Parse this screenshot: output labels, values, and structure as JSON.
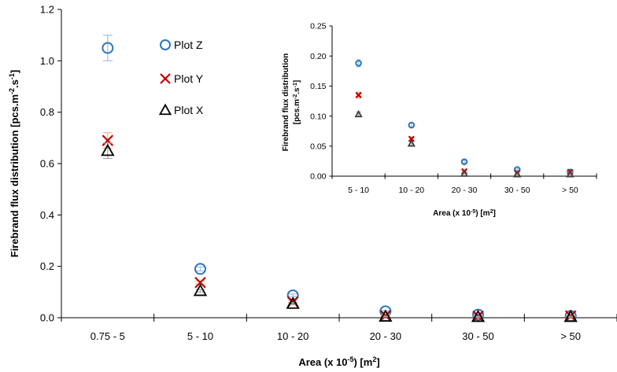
{
  "chart_data": [
    {
      "type": "scatter",
      "title": "",
      "xlabel": "Area (x 10",
      "xlabel_sup": "-5",
      "xlabel_tail": ") [m",
      "xlabel_sup2": "2",
      "xlabel_end": "]",
      "ylabel": "Firebrand flux distribution [pcs.m",
      "ylabel_sup": "-2",
      "ylabel_mid": ".s",
      "ylabel_sup2": "-1",
      "ylabel_end": "]",
      "categories": [
        "0.75 - 5",
        "5 - 10",
        "10 - 20",
        "20 - 30",
        "30 - 50",
        "> 50"
      ],
      "ylim": [
        0,
        1.2
      ],
      "yticks": [
        "0.0",
        "0.2",
        "0.4",
        "0.6",
        "0.8",
        "1.0",
        "1.2"
      ],
      "yticks_values": [
        0,
        0.2,
        0.4,
        0.6,
        0.8,
        1.0,
        1.2
      ],
      "grid": false,
      "legend_position": "top-center",
      "series": [
        {
          "name": "Plot Z",
          "marker": "circle",
          "color": "#2e75b6",
          "error_color": "#9dc3e6",
          "values": [
            1.05,
            0.19,
            0.087,
            0.025,
            0.012,
            0.007
          ],
          "errors": [
            0.05,
            0.008,
            0.005,
            0.003,
            0.002,
            0.002
          ]
        },
        {
          "name": "Plot Y",
          "marker": "x",
          "color": "#c00000",
          "error_color": "#f4b183",
          "values": [
            0.69,
            0.137,
            0.062,
            0.008,
            0.006,
            0.007
          ],
          "errors": [
            0.03,
            0.006,
            0.004,
            0.002,
            0.002,
            0.002
          ]
        },
        {
          "name": "Plot X",
          "marker": "triangle",
          "color": "#000000",
          "error_color": "#a6a6a6",
          "values": [
            0.65,
            0.105,
            0.055,
            0.005,
            0.004,
            0.004
          ],
          "errors": [
            0.03,
            0.005,
            0.004,
            0.002,
            0.002,
            0.002
          ]
        }
      ]
    },
    {
      "type": "scatter",
      "title": "",
      "xlabel": "Area (x 10",
      "xlabel_sup": "-5",
      "xlabel_tail": ") [m",
      "xlabel_sup2": "2",
      "xlabel_end": "]",
      "ylabel": "Firebrand flux distribution",
      "ylabel2": "[pcs.m",
      "ylabel2_sup": "-2",
      "ylabel2_mid": ".s",
      "ylabel2_sup2": "-1",
      "ylabel2_end": "]",
      "categories": [
        "5 - 10",
        "10 - 20",
        "20 - 30",
        "30 - 50",
        "> 50"
      ],
      "ylim": [
        0,
        0.25
      ],
      "yticks": [
        "0.00",
        "0.05",
        "0.10",
        "0.15",
        "0.20",
        "0.25"
      ],
      "yticks_values": [
        0,
        0.05,
        0.1,
        0.15,
        0.2,
        0.25
      ],
      "grid": false,
      "series": [
        {
          "marker": "circle",
          "color": "#2e75b6",
          "error_color": "#9dc3e6",
          "values": [
            0.188,
            0.085,
            0.024,
            0.011,
            0.007
          ],
          "errors": [
            0.006,
            0.003,
            0.002,
            0.001,
            0.001
          ]
        },
        {
          "marker": "x",
          "color": "#c00000",
          "error_color": "#f4b183",
          "values": [
            0.135,
            0.062,
            0.008,
            0.005,
            0.007
          ],
          "errors": [
            0.005,
            0.003,
            0.001,
            0.001,
            0.001
          ]
        },
        {
          "marker": "triangle",
          "color": "#404040",
          "error_color": "#a6a6a6",
          "values": [
            0.103,
            0.054,
            0.004,
            0.003,
            0.003
          ],
          "errors": [
            0.004,
            0.003,
            0.001,
            0.001,
            0.001
          ]
        }
      ]
    }
  ]
}
